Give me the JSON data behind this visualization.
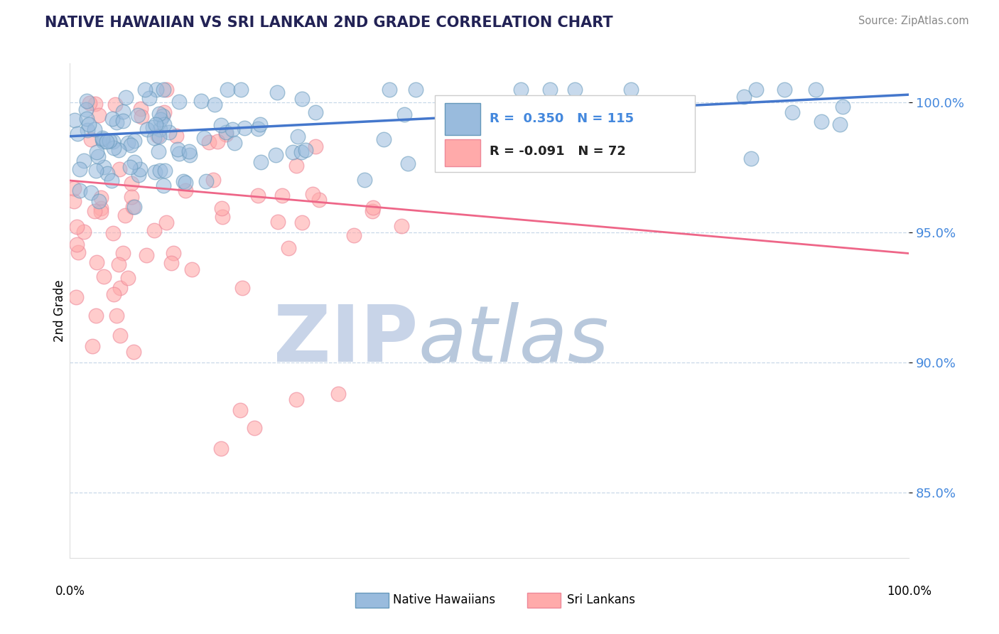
{
  "title": "NATIVE HAWAIIAN VS SRI LANKAN 2ND GRADE CORRELATION CHART",
  "source": "Source: ZipAtlas.com",
  "ylabel": "2nd Grade",
  "ytick_labels": [
    "85.0%",
    "90.0%",
    "95.0%",
    "100.0%"
  ],
  "ytick_values": [
    0.85,
    0.9,
    0.95,
    1.0
  ],
  "xlim": [
    0.0,
    1.0
  ],
  "ylim": [
    0.825,
    1.015
  ],
  "blue_color": "#99BBDD",
  "blue_edge": "#6699BB",
  "pink_color": "#FFAAAA",
  "pink_edge": "#EE8899",
  "trend_blue": "#4477CC",
  "trend_pink": "#EE6688",
  "blue_R": 0.35,
  "blue_N": 115,
  "pink_R": -0.091,
  "pink_N": 72,
  "legend_label_blue": "Native Hawaiians",
  "legend_label_pink": "Sri Lankans",
  "blue_trend_y0": 0.987,
  "blue_trend_y1": 1.003,
  "pink_trend_y0": 0.97,
  "pink_trend_y1": 0.942,
  "watermark_zip_color": "#C8D4E8",
  "watermark_atlas_color": "#B8C8DC",
  "grid_color": "#C8D8E8",
  "title_color": "#222255",
  "ytick_color": "#4488DD"
}
